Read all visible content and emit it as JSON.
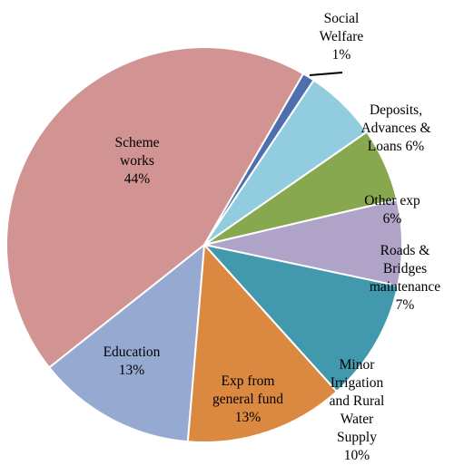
{
  "chart_data": {
    "type": "pie",
    "title": "",
    "slices": [
      {
        "name": "Social Welfare",
        "label_lines": [
          "Social",
          "Welfare",
          "1%"
        ],
        "percent": 1,
        "color": "#4d6fae"
      },
      {
        "name": "Deposits, Advances & Loans",
        "label_lines": [
          "Deposits,",
          "Advances &",
          "Loans 6%"
        ],
        "percent": 6,
        "color": "#92cddf"
      },
      {
        "name": "Other exp",
        "label_lines": [
          "Other exp",
          "6%"
        ],
        "percent": 6,
        "color": "#87a84e"
      },
      {
        "name": "Roads & Bridges maintenance",
        "label_lines": [
          "Roads &",
          "Bridges",
          "maintenance",
          "7%"
        ],
        "percent": 7,
        "color": "#b0a3c8"
      },
      {
        "name": "Minor Irrigation and Rural Water Supply",
        "label_lines": [
          "Minor",
          "Irrigation",
          "and Rural",
          "Water",
          "Supply",
          "10%"
        ],
        "percent": 10,
        "color": "#4299ad"
      },
      {
        "name": "Exp from general fund",
        "label_lines": [
          "Exp from",
          "general fund",
          "13%"
        ],
        "percent": 13,
        "color": "#db8841"
      },
      {
        "name": "Education",
        "label_lines": [
          "Education",
          "13%"
        ],
        "percent": 13,
        "color": "#96a9d1"
      },
      {
        "name": "Scheme works",
        "label_lines": [
          "Scheme",
          "works",
          "44%"
        ],
        "percent": 44,
        "color": "#d19492"
      }
    ],
    "start_angle_deg": 30,
    "direction": "clockwise",
    "legend": "none"
  }
}
